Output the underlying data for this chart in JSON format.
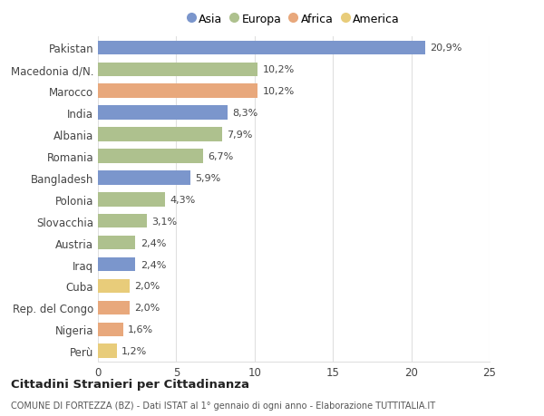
{
  "categories": [
    "Pakistan",
    "Macedonia d/N.",
    "Marocco",
    "India",
    "Albania",
    "Romania",
    "Bangladesh",
    "Polonia",
    "Slovacchia",
    "Austria",
    "Iraq",
    "Cuba",
    "Rep. del Congo",
    "Nigeria",
    "Perù"
  ],
  "values": [
    20.9,
    10.2,
    10.2,
    8.3,
    7.9,
    6.7,
    5.9,
    4.3,
    3.1,
    2.4,
    2.4,
    2.0,
    2.0,
    1.6,
    1.2
  ],
  "labels": [
    "20,9%",
    "10,2%",
    "10,2%",
    "8,3%",
    "7,9%",
    "6,7%",
    "5,9%",
    "4,3%",
    "3,1%",
    "2,4%",
    "2,4%",
    "2,0%",
    "2,0%",
    "1,6%",
    "1,2%"
  ],
  "colors": [
    "#7b96cc",
    "#aec18e",
    "#e8a87c",
    "#7b96cc",
    "#aec18e",
    "#aec18e",
    "#7b96cc",
    "#aec18e",
    "#aec18e",
    "#aec18e",
    "#7b96cc",
    "#e8cc7a",
    "#e8a87c",
    "#e8a87c",
    "#e8cc7a"
  ],
  "legend_labels": [
    "Asia",
    "Europa",
    "Africa",
    "America"
  ],
  "legend_colors": [
    "#7b96cc",
    "#aec18e",
    "#e8a87c",
    "#e8cc7a"
  ],
  "title": "Cittadini Stranieri per Cittadinanza",
  "subtitle": "COMUNE DI FORTEZZA (BZ) - Dati ISTAT al 1° gennaio di ogni anno - Elaborazione TUTTITALIA.IT",
  "xlim": [
    0,
    25
  ],
  "xticks": [
    0,
    5,
    10,
    15,
    20,
    25
  ],
  "background_color": "#ffffff",
  "grid_color": "#e0e0e0"
}
